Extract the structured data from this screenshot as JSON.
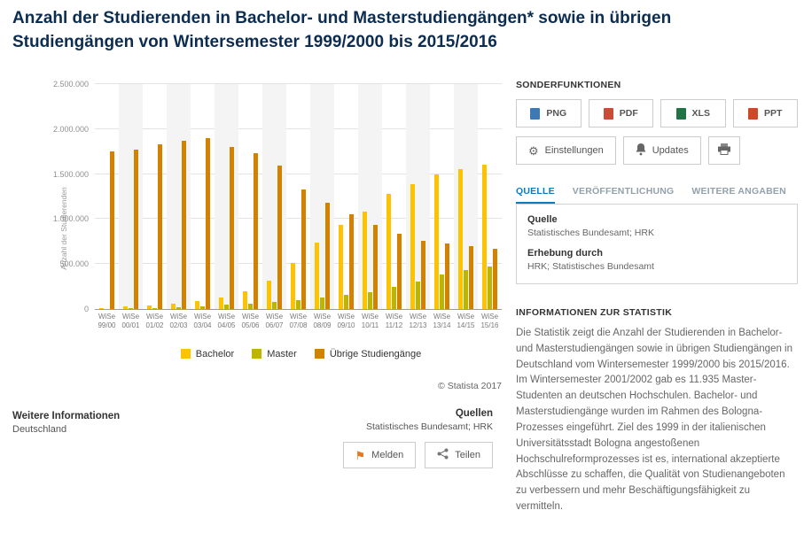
{
  "page": {
    "title": "Anzahl der Studierenden in Bachelor- und Masterstudiengängen* sowie in übrigen Studiengängen von Wintersemester 1999/2000 bis 2015/2016"
  },
  "chart_data": {
    "type": "bar",
    "title": "Anzahl der Studierenden in Bachelor- und Masterstudiengängen sowie in übrigen Studiengängen",
    "ylabel": "Anzahl der Studierenden",
    "xlabel": "",
    "ylim": [
      0,
      2500000
    ],
    "ytick_labels": [
      "0",
      "500.000",
      "1.000.000",
      "1.500.000",
      "2.000.000",
      "2.500.000"
    ],
    "grid": true,
    "legend_position": "bottom",
    "copyright": "© Statista 2017",
    "categories": [
      "WiSe 99/00",
      "WiSe 00/01",
      "WiSe 01/02",
      "WiSe 02/03",
      "WiSe 03/04",
      "WiSe 04/05",
      "WiSe 05/06",
      "WiSe 06/07",
      "WiSe 07/08",
      "WiSe 08/09",
      "WiSe 09/10",
      "WiSe 10/11",
      "WiSe 11/12",
      "WiSe 12/13",
      "WiSe 13/14",
      "WiSe 14/15",
      "WiSe 15/16"
    ],
    "series": [
      {
        "name": "Bachelor",
        "color": "#fdc300",
        "values": [
          13000,
          26000,
          40000,
          56000,
          90000,
          125000,
          200000,
          320000,
          510000,
          740000,
          935000,
          1080000,
          1280000,
          1390000,
          1500000,
          1560000,
          1600000
        ]
      },
      {
        "name": "Master",
        "color": "#bdb500",
        "values": [
          5000,
          9000,
          11935,
          20000,
          30000,
          45000,
          60000,
          80000,
          103000,
          130000,
          160000,
          185000,
          250000,
          310000,
          385000,
          435000,
          470000
        ]
      },
      {
        "name": "Übrige Studiengänge",
        "color": "#d38200",
        "values": [
          1750000,
          1770000,
          1830000,
          1870000,
          1900000,
          1800000,
          1730000,
          1590000,
          1330000,
          1180000,
          1050000,
          940000,
          840000,
          760000,
          730000,
          700000,
          670000
        ]
      }
    ]
  },
  "sonderfunktionen": {
    "heading": "SONDERFUNKTIONEN",
    "export_buttons": [
      {
        "label": "PNG",
        "icon_color": "#3d7ab5"
      },
      {
        "label": "PDF",
        "icon_color": "#cc4b37"
      },
      {
        "label": "XLS",
        "icon_color": "#217346"
      },
      {
        "label": "PPT",
        "icon_color": "#d04727"
      }
    ],
    "settings_label": "Einstellungen",
    "updates_label": "Updates"
  },
  "tabs": [
    {
      "label": "QUELLE",
      "active": true
    },
    {
      "label": "VERÖFFENTLICHUNG",
      "active": false
    },
    {
      "label": "WEITERE ANGABEN",
      "active": false
    }
  ],
  "quelle_box": {
    "quelle_label": "Quelle",
    "quelle_value": "Statistisches Bundesamt; HRK",
    "erhebung_label": "Erhebung durch",
    "erhebung_value": "HRK; Statistisches Bundesamt"
  },
  "info": {
    "heading": "INFORMATIONEN ZUR STATISTIK",
    "text": "Die Statistik zeigt die Anzahl der Studierenden in Bachelor- und Masterstudiengängen sowie in übrigen Studiengängen in Deutschland vom Wintersemester 1999/2000 bis 2015/2016. Im Wintersemester 2001/2002 gab es 11.935 Master-Studenten an deutschen Hochschulen. Bachelor- und Masterstudiengänge wurden im Rahmen des Bologna-Prozesses eingeführt. Ziel des 1999 in der italienischen Universitätsstadt Bologna angestoßenen Hochschulreformprozesses ist es, international akzeptierte Abschlüsse zu schaffen, die Qualität von Studienangeboten zu verbessern und mehr Beschäftigungsfähigkeit zu vermitteln."
  },
  "footer": {
    "weitere_label": "Weitere Informationen",
    "weitere_value": "Deutschland",
    "quellen_label": "Quellen",
    "quellen_value": "Statistisches Bundesamt; HRK",
    "melden_label": "Melden",
    "melden_icon_color": "#e87722",
    "teilen_label": "Teilen"
  }
}
